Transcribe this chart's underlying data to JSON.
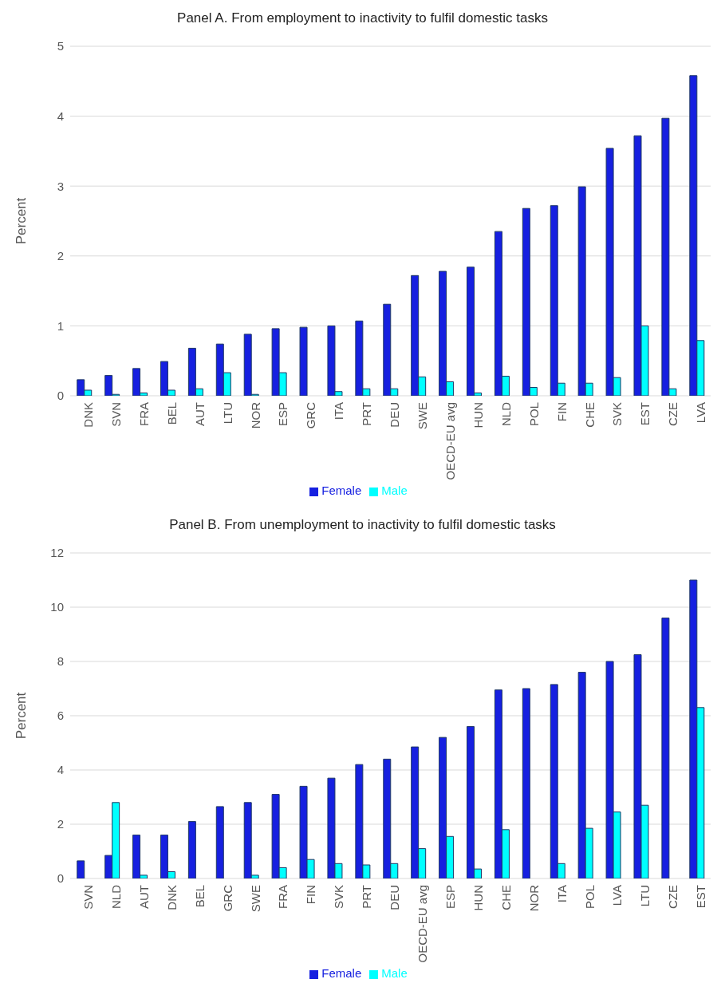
{
  "chart_data": [
    {
      "type": "bar",
      "title": "Panel A. From employment to inactivity to fulfil domestic tasks",
      "ylabel": "Percent",
      "categories": [
        "DNK",
        "SVN",
        "FRA",
        "BEL",
        "AUT",
        "LTU",
        "NOR",
        "ESP",
        "GRC",
        "ITA",
        "PRT",
        "DEU",
        "SWE",
        "OECD-EU avg",
        "HUN",
        "NLD",
        "POL",
        "FIN",
        "CHE",
        "SVK",
        "EST",
        "CZE",
        "LVA"
      ],
      "series": [
        {
          "name": "Female",
          "color": "#1620e0",
          "values": [
            0.23,
            0.29,
            0.39,
            0.49,
            0.68,
            0.74,
            0.88,
            0.96,
            0.98,
            1.0,
            1.07,
            1.31,
            1.72,
            1.78,
            1.84,
            2.35,
            2.68,
            2.72,
            2.99,
            3.54,
            3.72,
            3.97,
            4.58
          ]
        },
        {
          "name": "Male",
          "color": "#00ffff",
          "values": [
            0.08,
            0.02,
            0.04,
            0.08,
            0.1,
            0.33,
            0.02,
            0.33,
            null,
            0.06,
            0.1,
            0.1,
            0.27,
            0.2,
            0.04,
            0.28,
            0.12,
            0.18,
            0.18,
            0.26,
            1.0,
            0.1,
            0.79
          ]
        }
      ],
      "ylim": [
        0,
        5
      ],
      "yticks": [
        0,
        1,
        2,
        3,
        4,
        5
      ],
      "grid": "y",
      "legend": "bottom"
    },
    {
      "type": "bar",
      "title": "Panel B. From unemployment to inactivity to fulfil domestic tasks",
      "ylabel": "Percent",
      "categories": [
        "SVN",
        "NLD",
        "AUT",
        "DNK",
        "BEL",
        "GRC",
        "SWE",
        "FRA",
        "FIN",
        "SVK",
        "PRT",
        "DEU",
        "OECD-EU avg",
        "ESP",
        "HUN",
        "CHE",
        "NOR",
        "ITA",
        "POL",
        "LVA",
        "LTU",
        "CZE",
        "EST"
      ],
      "series": [
        {
          "name": "Female",
          "color": "#1620e0",
          "values": [
            0.65,
            0.85,
            1.6,
            1.6,
            2.1,
            2.65,
            2.8,
            3.1,
            3.4,
            3.7,
            4.2,
            4.4,
            4.85,
            5.2,
            5.6,
            6.95,
            7.0,
            7.15,
            7.6,
            8.0,
            8.25,
            9.6,
            11.0
          ]
        },
        {
          "name": "Male",
          "color": "#00ffff",
          "values": [
            null,
            2.8,
            0.12,
            0.25,
            null,
            null,
            0.12,
            0.4,
            0.7,
            0.55,
            0.5,
            0.55,
            1.1,
            1.55,
            0.35,
            1.8,
            null,
            0.55,
            1.85,
            2.45,
            2.7,
            null,
            6.3
          ]
        }
      ],
      "ylim": [
        0,
        12
      ],
      "yticks": [
        0,
        2,
        4,
        6,
        8,
        10,
        12
      ],
      "grid": "y",
      "legend": "bottom"
    }
  ]
}
